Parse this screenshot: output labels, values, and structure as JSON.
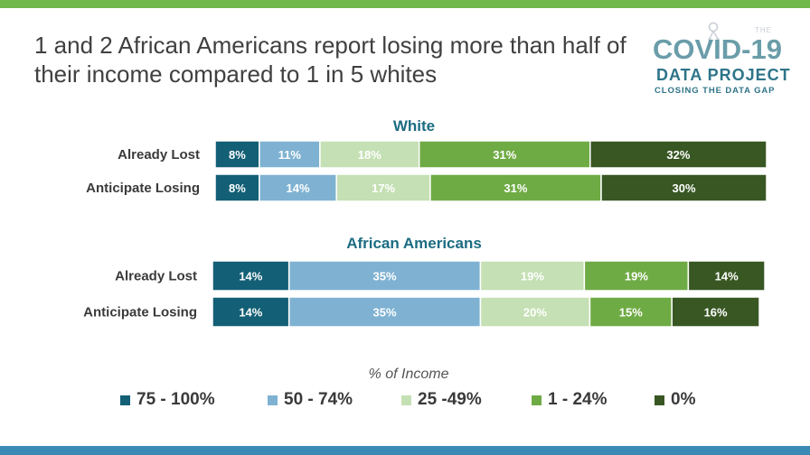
{
  "colors": {
    "band_top": "#71b84a",
    "band_bottom": "#3b8ab5",
    "group_title": "#1b6c82",
    "logo_teal": "#6a9da9",
    "logo_green": "#7bb34d",
    "logo_blue": "#2e7489"
  },
  "slide": {
    "title": "1 and 2 African Americans report losing more than half of their income compared to 1 in 5 whites"
  },
  "logo": {
    "prefix": "THE",
    "name": "COVID-19",
    "subtitle": "DATA PROJECT",
    "tagline": "CLOSING THE DATA GAP",
    "icon": "covid-data-project-molecule-icon"
  },
  "chart_data": {
    "type": "bar",
    "orientation": "horizontal",
    "stacked": true,
    "xlabel": "% of Income",
    "legend_position": "bottom",
    "legend": [
      {
        "label": "75 - 100%",
        "color": "#135f75"
      },
      {
        "label": "50 - 74%",
        "color": "#7fb2d2"
      },
      {
        "label": "25 -49%",
        "color": "#c5e0b4"
      },
      {
        "label": "1 - 24%",
        "color": "#6fab44"
      },
      {
        "label": "0%",
        "color": "#385723"
      }
    ],
    "groups": [
      {
        "title": "White",
        "rows": [
          {
            "label": "Already Lost",
            "values": [
              8,
              11,
              18,
              31,
              32
            ],
            "labels": [
              "8%",
              "11%",
              "18%",
              "31%",
              "32%"
            ]
          },
          {
            "label": "Anticipate Losing",
            "values": [
              8,
              14,
              17,
              31,
              30
            ],
            "labels": [
              "8%",
              "14%",
              "17%",
              "31%",
              "30%"
            ]
          }
        ]
      },
      {
        "title": "African Americans",
        "rows": [
          {
            "label": "Already Lost",
            "values": [
              14,
              35,
              19,
              19,
              14
            ],
            "labels": [
              "14%",
              "35%",
              "19%",
              "19%",
              "14%"
            ]
          },
          {
            "label": "Anticipate Losing",
            "values": [
              14,
              35,
              20,
              15,
              16
            ],
            "labels": [
              "14%",
              "35%",
              "20%",
              "15%",
              "16%"
            ]
          }
        ]
      }
    ]
  }
}
